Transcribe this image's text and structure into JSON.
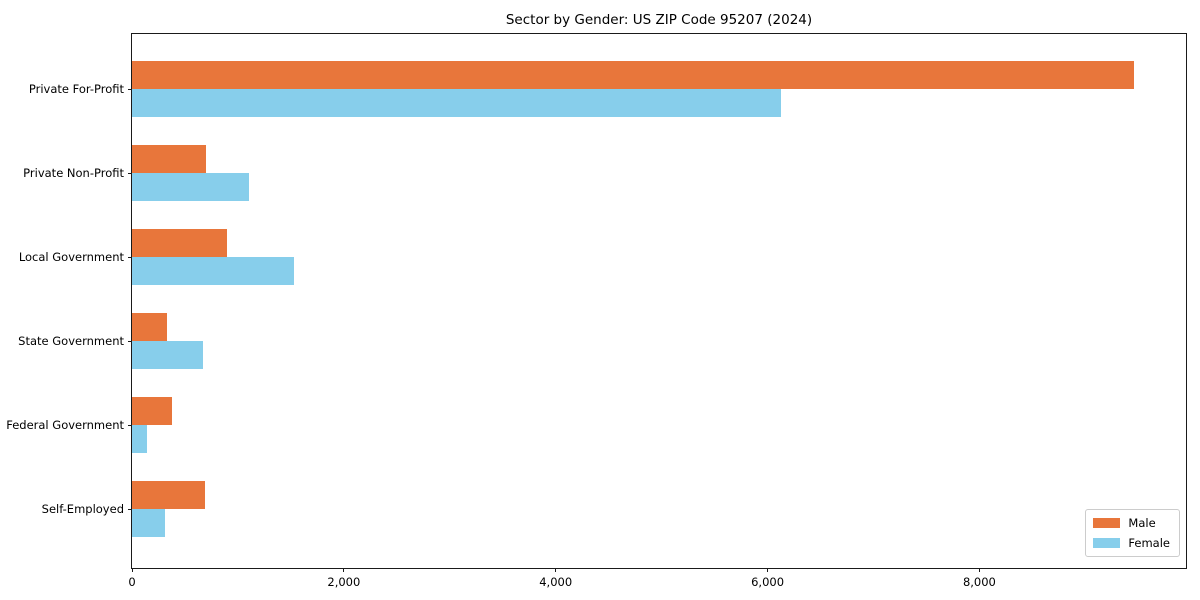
{
  "chart_data": {
    "type": "bar",
    "orientation": "horizontal",
    "title": "Sector by Gender: US ZIP Code 95207 (2024)",
    "categories": [
      "Private For-Profit",
      "Private Non-Profit",
      "Local Government",
      "State Government",
      "Federal Government",
      "Self-Employed"
    ],
    "series": [
      {
        "name": "Male",
        "color": "#E8763B",
        "values": [
          9460,
          700,
          900,
          330,
          380,
          690
        ]
      },
      {
        "name": "Female",
        "color": "#87CEEB",
        "values": [
          6130,
          1100,
          1530,
          670,
          140,
          310
        ]
      }
    ],
    "xlabel": "",
    "ylabel": "",
    "xlim": [
      0,
      9950
    ],
    "xticks": [
      0,
      2000,
      4000,
      6000,
      8000
    ],
    "xtick_labels": [
      "0",
      "2,000",
      "4,000",
      "6,000",
      "8,000"
    ],
    "grid": false,
    "legend_position": "lower right"
  }
}
